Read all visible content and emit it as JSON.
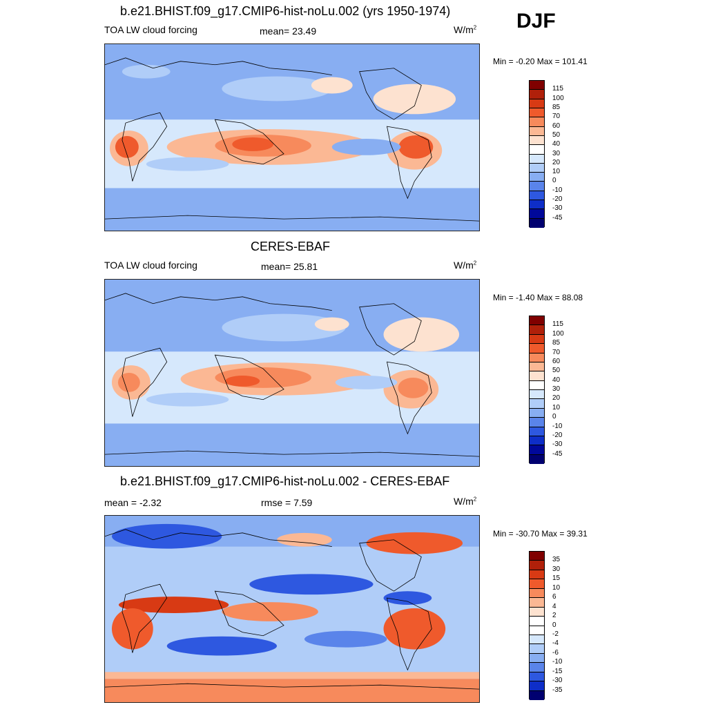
{
  "season": "DJF",
  "panels": [
    {
      "title": "b.e21.BHIST.f09_g17.CMIP6-hist-noLu.002 (yrs 1950-1974)",
      "left_label": "TOA LW cloud forcing",
      "center_label": "mean=  23.49",
      "units": "W/m",
      "units_sup": "2",
      "minmax": "Min =  -0.20 Max = 101.41",
      "colorbar_labels": [
        "115",
        "100",
        "85",
        "70",
        "60",
        "50",
        "40",
        "30",
        "20",
        "10",
        "0",
        "-10",
        "-20",
        "-30",
        "-45"
      ]
    },
    {
      "title": "CERES-EBAF",
      "left_label": "TOA LW cloud forcing",
      "center_label": "mean=  25.81",
      "units": "W/m",
      "units_sup": "2",
      "minmax": "Min =  -1.40 Max =  88.08",
      "colorbar_labels": [
        "115",
        "100",
        "85",
        "70",
        "60",
        "50",
        "40",
        "30",
        "20",
        "10",
        "0",
        "-10",
        "-20",
        "-30",
        "-45"
      ]
    },
    {
      "title": "b.e21.BHIST.f09_g17.CMIP6-hist-noLu.002 - CERES-EBAF",
      "left_label": "mean =  -2.32",
      "center_label": "rmse =   7.59",
      "units": "W/m",
      "units_sup": "2",
      "minmax": "Min = -30.70 Max =  39.31",
      "colorbar_labels": [
        "35",
        "30",
        "15",
        "10",
        "6",
        "4",
        "2",
        "0",
        "-2",
        "-4",
        "-6",
        "-10",
        "-15",
        "-30",
        "-35"
      ]
    }
  ],
  "colors": {
    "abs_scale": [
      "#800000",
      "#b0200a",
      "#d83a14",
      "#ef5a2c",
      "#f78a5c",
      "#fbb894",
      "#fde2d0",
      "#ffffff",
      "#d6e8fc",
      "#b0cdf8",
      "#88aef2",
      "#5a84ea",
      "#2e58e0",
      "#0e2ec8",
      "#00089a",
      "#000070"
    ],
    "diff_scale": [
      "#800000",
      "#b0200a",
      "#d83a14",
      "#ef5a2c",
      "#f78a5c",
      "#fbb894",
      "#fde2d0",
      "#ffffff",
      "#ffffff",
      "#d6e8fc",
      "#b0cdf8",
      "#88aef2",
      "#5a84ea",
      "#2e58e0",
      "#0e2ec8",
      "#000070"
    ]
  }
}
